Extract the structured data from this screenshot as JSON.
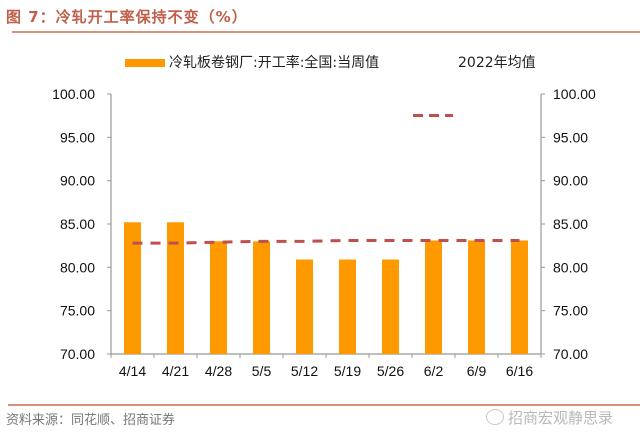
{
  "figure": {
    "title": "图 7：冷轧开工率保持不变（%）",
    "source": "资料来源：同花顺、招商证券",
    "watermark": "招商宏观静思录"
  },
  "legend": {
    "bar_label": "冷轧板卷钢厂:开工率:全国:当周值",
    "line_label": "2022年均值"
  },
  "colors": {
    "bar": "#ff9900",
    "line": "#c0504d",
    "title": "#c0604a",
    "axis": "#999999"
  },
  "chart_data": {
    "type": "bar",
    "title": "图 7：冷轧开工率保持不变（%）",
    "xlabel": "",
    "ylabel": "",
    "categories": [
      "4/14",
      "4/21",
      "4/28",
      "5/5",
      "5/12",
      "5/19",
      "5/26",
      "6/2",
      "6/9",
      "6/16"
    ],
    "series": [
      {
        "name": "冷轧板卷钢厂:开工率:全国:当周值",
        "type": "bar",
        "axis": "left",
        "values": [
          85.2,
          85.2,
          83.0,
          83.0,
          80.9,
          80.9,
          80.9,
          83.1,
          83.1,
          83.1
        ]
      },
      {
        "name": "2022年均值",
        "type": "line",
        "style": "dashed",
        "axis": "right",
        "values": [
          82.8,
          82.8,
          82.9,
          83.0,
          83.0,
          83.1,
          83.1,
          83.1,
          83.1,
          83.1
        ]
      }
    ],
    "ylim": [
      70,
      100
    ],
    "y2lim": [
      70,
      100
    ],
    "yticks": [
      "100.00",
      "95.00",
      "90.00",
      "85.00",
      "80.00",
      "75.00",
      "70.00"
    ],
    "grid": false,
    "legend_position": "top"
  }
}
